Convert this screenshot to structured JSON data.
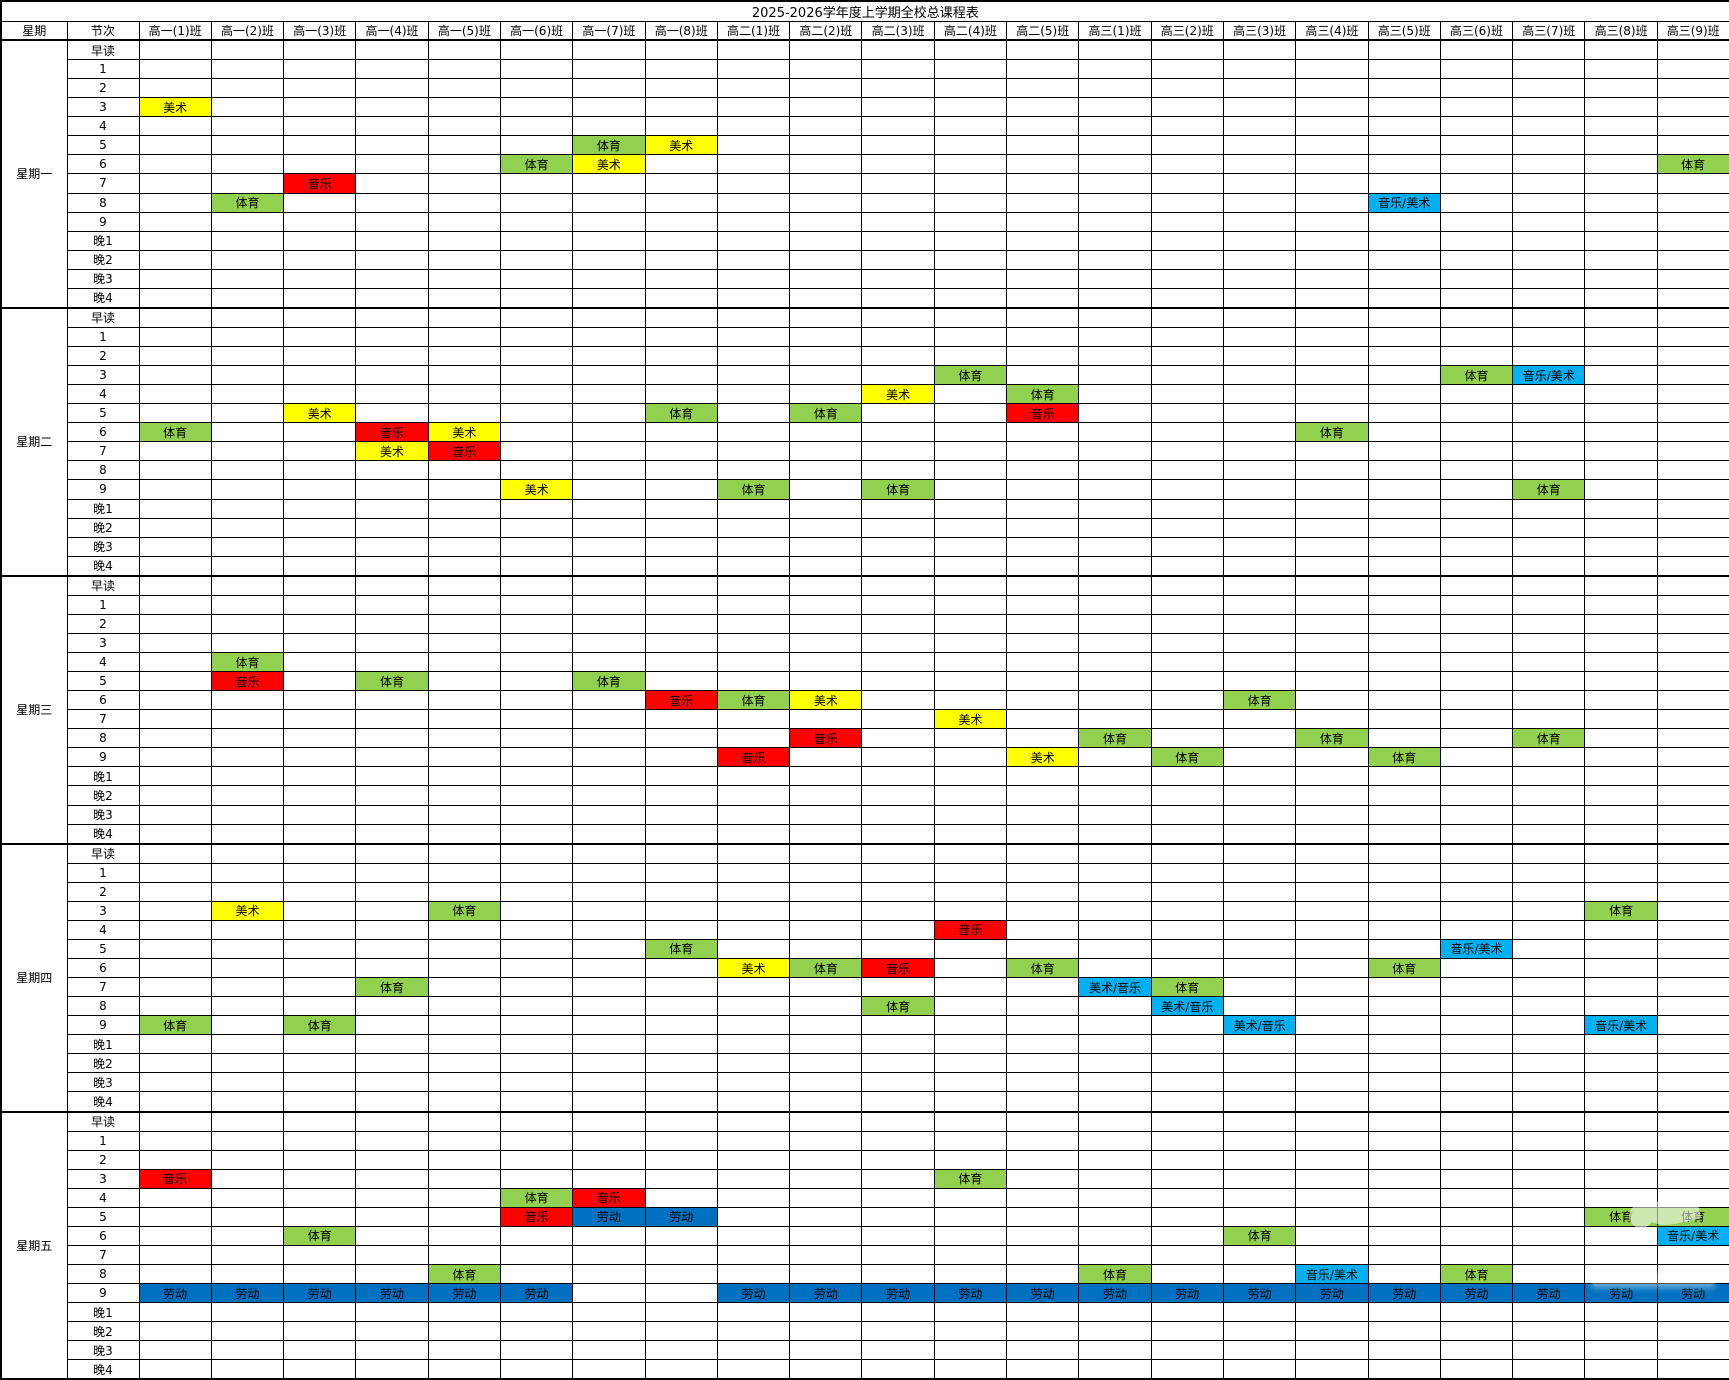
{
  "title": "2025-2026学年度上学期全校总课程表",
  "header": {
    "day_col": "星期",
    "period_col": "节次"
  },
  "classes": [
    "高一(1)班",
    "高一(2)班",
    "高一(3)班",
    "高一(4)班",
    "高一(5)班",
    "高一(6)班",
    "高一(7)班",
    "高一(8)班",
    "高二(1)班",
    "高二(2)班",
    "高二(3)班",
    "高二(4)班",
    "高二(5)班",
    "高三(1)班",
    "高三(2)班",
    "高三(3)班",
    "高三(4)班",
    "高三(5)班",
    "高三(6)班",
    "高三(7)班",
    "高三(8)班",
    "高三(9)班"
  ],
  "days": [
    "星期一",
    "星期二",
    "星期三",
    "星期四",
    "星期五"
  ],
  "periods": [
    "早读",
    "1",
    "2",
    "3",
    "4",
    "5",
    "6",
    "7",
    "8",
    "9",
    "晚1",
    "晚2",
    "晚3",
    "晚4"
  ],
  "subject_colors": {
    "美术": "#FFFF00",
    "体育": "#92D050",
    "音乐": "#FF0000",
    "劳动": "#0070C0",
    "音乐/美术": "#00B0F0",
    "美术/音乐": "#00B0F0"
  },
  "entries": [
    {
      "day": 0,
      "period": "3",
      "cls": 0,
      "subject": "美术"
    },
    {
      "day": 0,
      "period": "5",
      "cls": 6,
      "subject": "体育"
    },
    {
      "day": 0,
      "period": "5",
      "cls": 7,
      "subject": "美术"
    },
    {
      "day": 0,
      "period": "6",
      "cls": 5,
      "subject": "体育"
    },
    {
      "day": 0,
      "period": "6",
      "cls": 6,
      "subject": "美术"
    },
    {
      "day": 0,
      "period": "6",
      "cls": 21,
      "subject": "体育"
    },
    {
      "day": 0,
      "period": "7",
      "cls": 2,
      "subject": "音乐"
    },
    {
      "day": 0,
      "period": "8",
      "cls": 1,
      "subject": "体育"
    },
    {
      "day": 0,
      "period": "8",
      "cls": 17,
      "subject": "音乐/美术"
    },
    {
      "day": 1,
      "period": "3",
      "cls": 11,
      "subject": "体育"
    },
    {
      "day": 1,
      "period": "3",
      "cls": 18,
      "subject": "体育"
    },
    {
      "day": 1,
      "period": "3",
      "cls": 19,
      "subject": "音乐/美术"
    },
    {
      "day": 1,
      "period": "4",
      "cls": 10,
      "subject": "美术"
    },
    {
      "day": 1,
      "period": "4",
      "cls": 12,
      "subject": "体育"
    },
    {
      "day": 1,
      "period": "5",
      "cls": 2,
      "subject": "美术"
    },
    {
      "day": 1,
      "period": "5",
      "cls": 7,
      "subject": "体育"
    },
    {
      "day": 1,
      "period": "5",
      "cls": 9,
      "subject": "体育"
    },
    {
      "day": 1,
      "period": "5",
      "cls": 12,
      "subject": "音乐"
    },
    {
      "day": 1,
      "period": "6",
      "cls": 0,
      "subject": "体育"
    },
    {
      "day": 1,
      "period": "6",
      "cls": 3,
      "subject": "音乐"
    },
    {
      "day": 1,
      "period": "6",
      "cls": 4,
      "subject": "美术"
    },
    {
      "day": 1,
      "period": "6",
      "cls": 16,
      "subject": "体育"
    },
    {
      "day": 1,
      "period": "7",
      "cls": 3,
      "subject": "美术"
    },
    {
      "day": 1,
      "period": "7",
      "cls": 4,
      "subject": "音乐"
    },
    {
      "day": 1,
      "period": "9",
      "cls": 5,
      "subject": "美术"
    },
    {
      "day": 1,
      "period": "9",
      "cls": 8,
      "subject": "体育"
    },
    {
      "day": 1,
      "period": "9",
      "cls": 10,
      "subject": "体育"
    },
    {
      "day": 1,
      "period": "9",
      "cls": 19,
      "subject": "体育"
    },
    {
      "day": 2,
      "period": "4",
      "cls": 1,
      "subject": "体育"
    },
    {
      "day": 2,
      "period": "5",
      "cls": 1,
      "subject": "音乐"
    },
    {
      "day": 2,
      "period": "5",
      "cls": 3,
      "subject": "体育"
    },
    {
      "day": 2,
      "period": "5",
      "cls": 6,
      "subject": "体育"
    },
    {
      "day": 2,
      "period": "6",
      "cls": 7,
      "subject": "音乐"
    },
    {
      "day": 2,
      "period": "6",
      "cls": 8,
      "subject": "体育"
    },
    {
      "day": 2,
      "period": "6",
      "cls": 9,
      "subject": "美术"
    },
    {
      "day": 2,
      "period": "6",
      "cls": 15,
      "subject": "体育"
    },
    {
      "day": 2,
      "period": "7",
      "cls": 11,
      "subject": "美术"
    },
    {
      "day": 2,
      "period": "8",
      "cls": 9,
      "subject": "音乐"
    },
    {
      "day": 2,
      "period": "8",
      "cls": 13,
      "subject": "体育"
    },
    {
      "day": 2,
      "period": "8",
      "cls": 16,
      "subject": "体育"
    },
    {
      "day": 2,
      "period": "8",
      "cls": 19,
      "subject": "体育"
    },
    {
      "day": 2,
      "period": "9",
      "cls": 8,
      "subject": "音乐"
    },
    {
      "day": 2,
      "period": "9",
      "cls": 12,
      "subject": "美术"
    },
    {
      "day": 2,
      "period": "9",
      "cls": 14,
      "subject": "体育"
    },
    {
      "day": 2,
      "period": "9",
      "cls": 17,
      "subject": "体育"
    },
    {
      "day": 3,
      "period": "3",
      "cls": 1,
      "subject": "美术"
    },
    {
      "day": 3,
      "period": "3",
      "cls": 4,
      "subject": "体育"
    },
    {
      "day": 3,
      "period": "3",
      "cls": 20,
      "subject": "体育"
    },
    {
      "day": 3,
      "period": "4",
      "cls": 11,
      "subject": "音乐"
    },
    {
      "day": 3,
      "period": "5",
      "cls": 7,
      "subject": "体育"
    },
    {
      "day": 3,
      "period": "5",
      "cls": 18,
      "subject": "音乐/美术"
    },
    {
      "day": 3,
      "period": "6",
      "cls": 8,
      "subject": "美术"
    },
    {
      "day": 3,
      "period": "6",
      "cls": 9,
      "subject": "体育"
    },
    {
      "day": 3,
      "period": "6",
      "cls": 10,
      "subject": "音乐"
    },
    {
      "day": 3,
      "period": "6",
      "cls": 12,
      "subject": "体育"
    },
    {
      "day": 3,
      "period": "6",
      "cls": 17,
      "subject": "体育"
    },
    {
      "day": 3,
      "period": "7",
      "cls": 3,
      "subject": "体育"
    },
    {
      "day": 3,
      "period": "7",
      "cls": 13,
      "subject": "美术/音乐"
    },
    {
      "day": 3,
      "period": "7",
      "cls": 14,
      "subject": "体育"
    },
    {
      "day": 3,
      "period": "8",
      "cls": 10,
      "subject": "体育"
    },
    {
      "day": 3,
      "period": "8",
      "cls": 14,
      "subject": "美术/音乐"
    },
    {
      "day": 3,
      "period": "9",
      "cls": 0,
      "subject": "体育"
    },
    {
      "day": 3,
      "period": "9",
      "cls": 2,
      "subject": "体育"
    },
    {
      "day": 3,
      "period": "9",
      "cls": 15,
      "subject": "美术/音乐"
    },
    {
      "day": 3,
      "period": "9",
      "cls": 20,
      "subject": "音乐/美术"
    },
    {
      "day": 4,
      "period": "3",
      "cls": 0,
      "subject": "音乐"
    },
    {
      "day": 4,
      "period": "3",
      "cls": 11,
      "subject": "体育"
    },
    {
      "day": 4,
      "period": "4",
      "cls": 5,
      "subject": "体育"
    },
    {
      "day": 4,
      "period": "4",
      "cls": 6,
      "subject": "音乐"
    },
    {
      "day": 4,
      "period": "5",
      "cls": 5,
      "subject": "音乐"
    },
    {
      "day": 4,
      "period": "5",
      "cls": 6,
      "subject": "劳动"
    },
    {
      "day": 4,
      "period": "5",
      "cls": 7,
      "subject": "劳动"
    },
    {
      "day": 4,
      "period": "5",
      "cls": 20,
      "subject": "体育"
    },
    {
      "day": 4,
      "period": "5",
      "cls": 21,
      "subject": "体育"
    },
    {
      "day": 4,
      "period": "6",
      "cls": 2,
      "subject": "体育"
    },
    {
      "day": 4,
      "period": "6",
      "cls": 15,
      "subject": "体育"
    },
    {
      "day": 4,
      "period": "6",
      "cls": 21,
      "subject": "音乐/美术"
    },
    {
      "day": 4,
      "period": "8",
      "cls": 4,
      "subject": "体育"
    },
    {
      "day": 4,
      "period": "8",
      "cls": 13,
      "subject": "体育"
    },
    {
      "day": 4,
      "period": "8",
      "cls": 16,
      "subject": "音乐/美术"
    },
    {
      "day": 4,
      "period": "8",
      "cls": 18,
      "subject": "体育"
    },
    {
      "day": 4,
      "period": "9",
      "cls": 0,
      "subject": "劳动"
    },
    {
      "day": 4,
      "period": "9",
      "cls": 1,
      "subject": "劳动"
    },
    {
      "day": 4,
      "period": "9",
      "cls": 2,
      "subject": "劳动"
    },
    {
      "day": 4,
      "period": "9",
      "cls": 3,
      "subject": "劳动"
    },
    {
      "day": 4,
      "period": "9",
      "cls": 4,
      "subject": "劳动"
    },
    {
      "day": 4,
      "period": "9",
      "cls": 5,
      "subject": "劳动"
    },
    {
      "day": 4,
      "period": "9",
      "cls": 8,
      "subject": "劳动"
    },
    {
      "day": 4,
      "period": "9",
      "cls": 9,
      "subject": "劳动"
    },
    {
      "day": 4,
      "period": "9",
      "cls": 10,
      "subject": "劳动"
    },
    {
      "day": 4,
      "period": "9",
      "cls": 11,
      "subject": "劳动"
    },
    {
      "day": 4,
      "period": "9",
      "cls": 12,
      "subject": "劳动"
    },
    {
      "day": 4,
      "period": "9",
      "cls": 13,
      "subject": "劳动"
    },
    {
      "day": 4,
      "period": "9",
      "cls": 14,
      "subject": "劳动"
    },
    {
      "day": 4,
      "period": "9",
      "cls": 15,
      "subject": "劳动"
    },
    {
      "day": 4,
      "period": "9",
      "cls": 16,
      "subject": "劳动"
    },
    {
      "day": 4,
      "period": "9",
      "cls": 17,
      "subject": "劳动"
    },
    {
      "day": 4,
      "period": "9",
      "cls": 18,
      "subject": "劳动"
    },
    {
      "day": 4,
      "period": "9",
      "cls": 19,
      "subject": "劳动"
    },
    {
      "day": 4,
      "period": "9",
      "cls": 20,
      "subject": "劳动"
    },
    {
      "day": 4,
      "period": "9",
      "cls": 21,
      "subject": "劳动"
    }
  ]
}
